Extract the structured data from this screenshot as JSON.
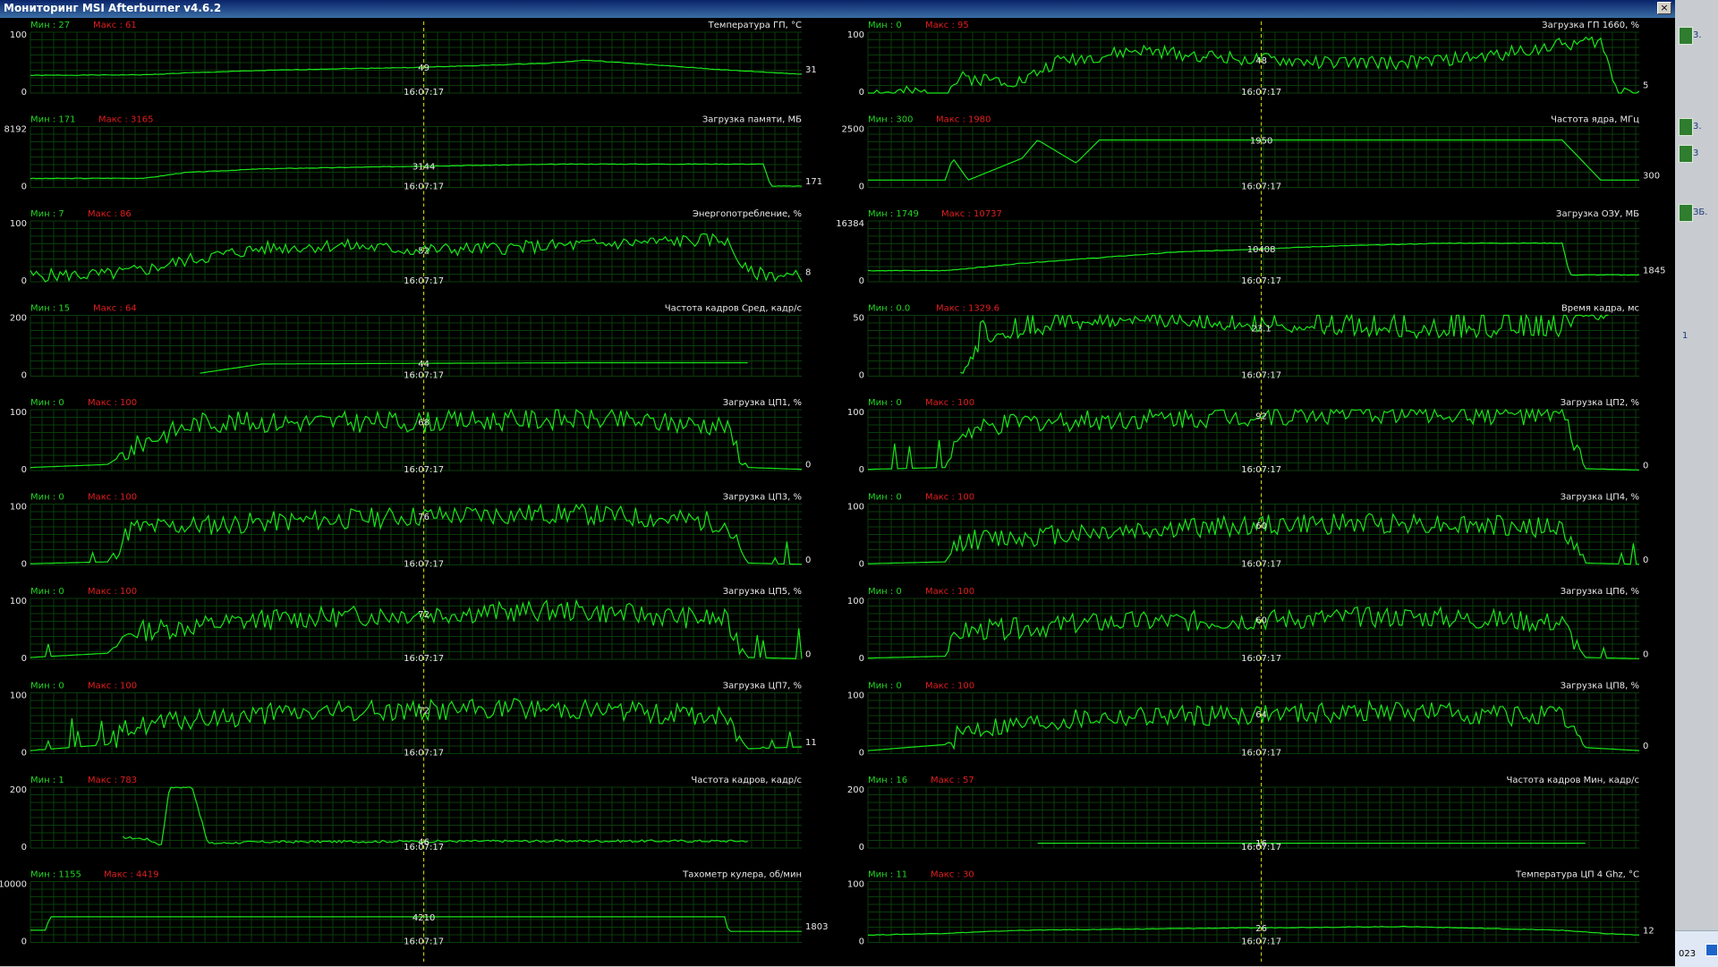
{
  "window": {
    "title": "Мониторинг MSI Afterburner v4.6.2",
    "close_label": "×"
  },
  "accent_colors": {
    "line": "#19e619",
    "min_label": "#22d422",
    "max_label": "#e01e1e",
    "cursor": "#e6e600",
    "grid": "#0b3d0b"
  },
  "cursor_time": "16:07:17",
  "min_prefix": "Мин : ",
  "max_prefix": "Макс : ",
  "charts": [
    {
      "id": "gpu-temp",
      "title": "Температура ГП, °С",
      "min": "27",
      "max": "61",
      "ymax": "100",
      "ymin": "0",
      "cursor_value": "49",
      "current_value": "31",
      "variant": "smooth",
      "seed": 1,
      "points": [
        [
          0,
          29
        ],
        [
          0.15,
          30
        ],
        [
          0.2,
          33
        ],
        [
          0.3,
          37
        ],
        [
          0.4,
          40
        ],
        [
          0.5,
          42
        ],
        [
          0.6,
          46
        ],
        [
          0.67,
          49
        ],
        [
          0.72,
          54
        ],
        [
          0.8,
          47
        ],
        [
          0.9,
          38
        ],
        [
          1,
          31
        ]
      ]
    },
    {
      "id": "gpu-load",
      "title": "Загрузка ГП 1660, %",
      "min": "0",
      "max": "95",
      "ymax": "100",
      "ymin": "0",
      "cursor_value": "48",
      "current_value": "5",
      "variant": "noisy",
      "seed": 2,
      "points": [
        [
          0,
          0
        ],
        [
          0.1,
          0
        ],
        [
          0.12,
          25
        ],
        [
          0.2,
          20
        ],
        [
          0.25,
          55
        ],
        [
          0.3,
          60
        ],
        [
          0.35,
          70
        ],
        [
          0.4,
          65
        ],
        [
          0.5,
          55
        ],
        [
          0.6,
          50
        ],
        [
          0.7,
          50
        ],
        [
          0.8,
          60
        ],
        [
          0.9,
          80
        ],
        [
          0.95,
          85
        ],
        [
          0.97,
          8
        ],
        [
          1,
          5
        ]
      ]
    },
    {
      "id": "mem-load",
      "title": "Загрузка памяти, МБ",
      "min": "171",
      "max": "3165",
      "ymax": "8192",
      "ymin": "0",
      "cursor_value": "3144",
      "current_value": "171",
      "variant": "smooth",
      "seed": 3,
      "points": [
        [
          0,
          1200
        ],
        [
          0.15,
          1250
        ],
        [
          0.2,
          2000
        ],
        [
          0.3,
          2500
        ],
        [
          0.5,
          2850
        ],
        [
          0.6,
          3000
        ],
        [
          0.7,
          3144
        ],
        [
          0.95,
          3144
        ],
        [
          0.96,
          171
        ],
        [
          1,
          171
        ]
      ]
    },
    {
      "id": "core-clock",
      "title": "Частота ядра, МГц",
      "min": "300",
      "max": "1980",
      "ymax": "2500",
      "ymin": "0",
      "cursor_value": "1950",
      "current_value": "300",
      "variant": "step",
      "seed": 4,
      "points": [
        [
          0,
          300
        ],
        [
          0.1,
          300
        ],
        [
          0.11,
          1200
        ],
        [
          0.13,
          300
        ],
        [
          0.2,
          1200
        ],
        [
          0.22,
          1950
        ],
        [
          0.27,
          1000
        ],
        [
          0.3,
          1950
        ],
        [
          0.9,
          1950
        ],
        [
          0.95,
          300
        ],
        [
          1,
          300
        ]
      ]
    },
    {
      "id": "power",
      "title": "Энергопотребление, %",
      "min": "7",
      "max": "86",
      "ymax": "100",
      "ymin": "0",
      "cursor_value": "52",
      "current_value": "8",
      "variant": "noisy",
      "seed": 5,
      "points": [
        [
          0,
          10
        ],
        [
          0.1,
          12
        ],
        [
          0.15,
          20
        ],
        [
          0.2,
          35
        ],
        [
          0.3,
          55
        ],
        [
          0.4,
          60
        ],
        [
          0.5,
          52
        ],
        [
          0.6,
          55
        ],
        [
          0.7,
          60
        ],
        [
          0.9,
          70
        ],
        [
          0.93,
          15
        ],
        [
          1,
          8
        ]
      ]
    },
    {
      "id": "ram-load",
      "title": "Загрузка ОЗУ, МБ",
      "min": "1749",
      "max": "10737",
      "ymax": "16384",
      "ymin": "0",
      "cursor_value": "10408",
      "current_value": "1845",
      "variant": "smooth",
      "seed": 6,
      "points": [
        [
          0,
          3000
        ],
        [
          0.1,
          3000
        ],
        [
          0.2,
          5000
        ],
        [
          0.4,
          8000
        ],
        [
          0.6,
          9600
        ],
        [
          0.75,
          10408
        ],
        [
          0.9,
          10408
        ],
        [
          0.91,
          1845
        ],
        [
          1,
          1845
        ]
      ]
    },
    {
      "id": "fps-avg",
      "title": "Частота кадров Сред, кадр/с",
      "min": "15",
      "max": "64",
      "ymax": "200",
      "ymin": "0",
      "cursor_value": "44",
      "current_value": "",
      "variant": "partial",
      "seed": 7,
      "points": [
        [
          0.22,
          10
        ],
        [
          0.3,
          40
        ],
        [
          0.5,
          42
        ],
        [
          0.7,
          44
        ],
        [
          0.93,
          44
        ]
      ]
    },
    {
      "id": "frametime",
      "title": "Время кадра, мс",
      "min": "0.0",
      "max": "1329.6",
      "ymax": "50",
      "ymin": "0",
      "cursor_value": "23.1",
      "current_value": "",
      "variant": "spiky",
      "seed": 8,
      "points": [
        [
          0.12,
          0
        ],
        [
          0.15,
          30
        ],
        [
          0.25,
          40
        ],
        [
          0.35,
          45
        ],
        [
          0.5,
          40
        ],
        [
          0.7,
          35
        ],
        [
          0.9,
          35
        ],
        [
          0.92,
          50
        ],
        [
          0.96,
          50
        ]
      ]
    },
    {
      "id": "cpu1",
      "title": "Загрузка ЦП1, %",
      "min": "0",
      "max": "100",
      "ymax": "100",
      "ymin": "0",
      "cursor_value": "68",
      "current_value": "0",
      "variant": "cpu",
      "seed": 9,
      "points": [
        [
          0,
          5
        ],
        [
          0.1,
          10
        ],
        [
          0.15,
          50
        ],
        [
          0.22,
          80
        ],
        [
          0.5,
          80
        ],
        [
          0.7,
          85
        ],
        [
          0.9,
          75
        ],
        [
          0.93,
          5
        ],
        [
          1,
          2
        ]
      ]
    },
    {
      "id": "cpu2",
      "title": "Загрузка ЦП2, %",
      "min": "0",
      "max": "100",
      "ymax": "100",
      "ymin": "0",
      "cursor_value": "92",
      "current_value": "0",
      "variant": "cpu",
      "seed": 10,
      "points": [
        [
          0,
          2
        ],
        [
          0.1,
          5
        ],
        [
          0.12,
          60
        ],
        [
          0.2,
          80
        ],
        [
          0.5,
          90
        ],
        [
          0.7,
          95
        ],
        [
          0.9,
          90
        ],
        [
          0.93,
          3
        ],
        [
          1,
          1
        ]
      ]
    },
    {
      "id": "cpu3",
      "title": "Загрузка ЦП3, %",
      "min": "0",
      "max": "100",
      "ymax": "100",
      "ymin": "0",
      "cursor_value": "76",
      "current_value": "0",
      "variant": "cpu",
      "seed": 11,
      "points": [
        [
          0,
          2
        ],
        [
          0.1,
          5
        ],
        [
          0.13,
          60
        ],
        [
          0.3,
          70
        ],
        [
          0.5,
          80
        ],
        [
          0.7,
          85
        ],
        [
          0.9,
          70
        ],
        [
          0.93,
          3
        ],
        [
          1,
          1
        ]
      ]
    },
    {
      "id": "cpu4",
      "title": "Загрузка ЦП4, %",
      "min": "0",
      "max": "100",
      "ymax": "100",
      "ymin": "0",
      "cursor_value": "60",
      "current_value": "0",
      "variant": "cpu",
      "seed": 12,
      "points": [
        [
          0,
          2
        ],
        [
          0.1,
          5
        ],
        [
          0.12,
          40
        ],
        [
          0.3,
          55
        ],
        [
          0.5,
          65
        ],
        [
          0.7,
          70
        ],
        [
          0.9,
          60
        ],
        [
          0.93,
          3
        ],
        [
          1,
          1
        ]
      ]
    },
    {
      "id": "cpu5",
      "title": "Загрузка ЦП5, %",
      "min": "0",
      "max": "100",
      "ymax": "100",
      "ymin": "0",
      "cursor_value": "72",
      "current_value": "0",
      "variant": "cpu",
      "seed": 13,
      "points": [
        [
          0,
          3
        ],
        [
          0.1,
          10
        ],
        [
          0.13,
          45
        ],
        [
          0.3,
          65
        ],
        [
          0.5,
          75
        ],
        [
          0.7,
          80
        ],
        [
          0.9,
          65
        ],
        [
          0.93,
          3
        ],
        [
          1,
          1
        ]
      ]
    },
    {
      "id": "cpu6",
      "title": "Загрузка ЦП6, %",
      "min": "0",
      "max": "100",
      "ymax": "100",
      "ymin": "0",
      "cursor_value": "60",
      "current_value": "0",
      "variant": "cpu",
      "seed": 14,
      "points": [
        [
          0,
          2
        ],
        [
          0.1,
          5
        ],
        [
          0.12,
          45
        ],
        [
          0.3,
          60
        ],
        [
          0.5,
          65
        ],
        [
          0.7,
          70
        ],
        [
          0.9,
          60
        ],
        [
          0.93,
          3
        ],
        [
          1,
          1
        ]
      ]
    },
    {
      "id": "cpu7",
      "title": "Загрузка ЦП7, %",
      "min": "0",
      "max": "100",
      "ymax": "100",
      "ymin": "0",
      "cursor_value": "72",
      "current_value": "11",
      "variant": "cpu",
      "seed": 15,
      "points": [
        [
          0,
          5
        ],
        [
          0.1,
          15
        ],
        [
          0.13,
          45
        ],
        [
          0.3,
          65
        ],
        [
          0.5,
          72
        ],
        [
          0.7,
          75
        ],
        [
          0.9,
          60
        ],
        [
          0.93,
          8
        ],
        [
          1,
          11
        ]
      ]
    },
    {
      "id": "cpu8",
      "title": "Загрузка ЦП8, %",
      "min": "0",
      "max": "100",
      "ymax": "100",
      "ymin": "0",
      "cursor_value": "64",
      "current_value": "0",
      "variant": "cpu",
      "seed": 16,
      "points": [
        [
          0,
          5
        ],
        [
          0.1,
          15
        ],
        [
          0.13,
          40
        ],
        [
          0.3,
          60
        ],
        [
          0.5,
          65
        ],
        [
          0.7,
          70
        ],
        [
          0.9,
          60
        ],
        [
          0.93,
          10
        ],
        [
          1,
          5
        ]
      ]
    },
    {
      "id": "fps",
      "title": "Частота кадров, кадр/с",
      "min": "1",
      "max": "783",
      "ymax": "200",
      "ymin": "0",
      "cursor_value": "46",
      "current_value": "",
      "variant": "fps",
      "seed": 17,
      "points": [
        [
          0.12,
          35
        ],
        [
          0.15,
          30
        ],
        [
          0.17,
          10
        ],
        [
          0.18,
          200
        ],
        [
          0.21,
          200
        ],
        [
          0.23,
          15
        ],
        [
          0.3,
          20
        ],
        [
          0.5,
          22
        ],
        [
          0.7,
          23
        ],
        [
          0.93,
          23
        ]
      ]
    },
    {
      "id": "fps-min",
      "title": "Частота кадров Мин, кадр/с",
      "min": "16",
      "max": "57",
      "ymax": "200",
      "ymin": "0",
      "cursor_value": "16",
      "current_value": "",
      "variant": "flat",
      "seed": 18,
      "points": [
        [
          0.22,
          16
        ],
        [
          0.93,
          16
        ]
      ]
    },
    {
      "id": "fan",
      "title": "Тахометр кулера, об/мин",
      "min": "1155",
      "max": "4419",
      "ymax": "10000",
      "ymin": "0",
      "cursor_value": "4210",
      "current_value": "1803",
      "variant": "step",
      "seed": 19,
      "points": [
        [
          0,
          2000
        ],
        [
          0.02,
          2000
        ],
        [
          0.025,
          4210
        ],
        [
          0.9,
          4210
        ],
        [
          0.905,
          1803
        ],
        [
          1,
          1803
        ]
      ]
    },
    {
      "id": "cpu-temp",
      "title": "Температура ЦП 4 Ghz, °С",
      "min": "11",
      "max": "30",
      "ymax": "100",
      "ymin": "0",
      "cursor_value": "26",
      "current_value": "12",
      "variant": "smooth",
      "seed": 20,
      "points": [
        [
          0,
          12
        ],
        [
          0.1,
          15
        ],
        [
          0.2,
          20
        ],
        [
          0.5,
          24
        ],
        [
          0.7,
          26
        ],
        [
          0.9,
          20
        ],
        [
          0.95,
          15
        ],
        [
          1,
          12
        ]
      ]
    }
  ],
  "side_strip": {
    "labels": [
      "3.",
      "3.",
      "3",
      "ЗБ."
    ],
    "number": "1",
    "tray_date": "023"
  }
}
